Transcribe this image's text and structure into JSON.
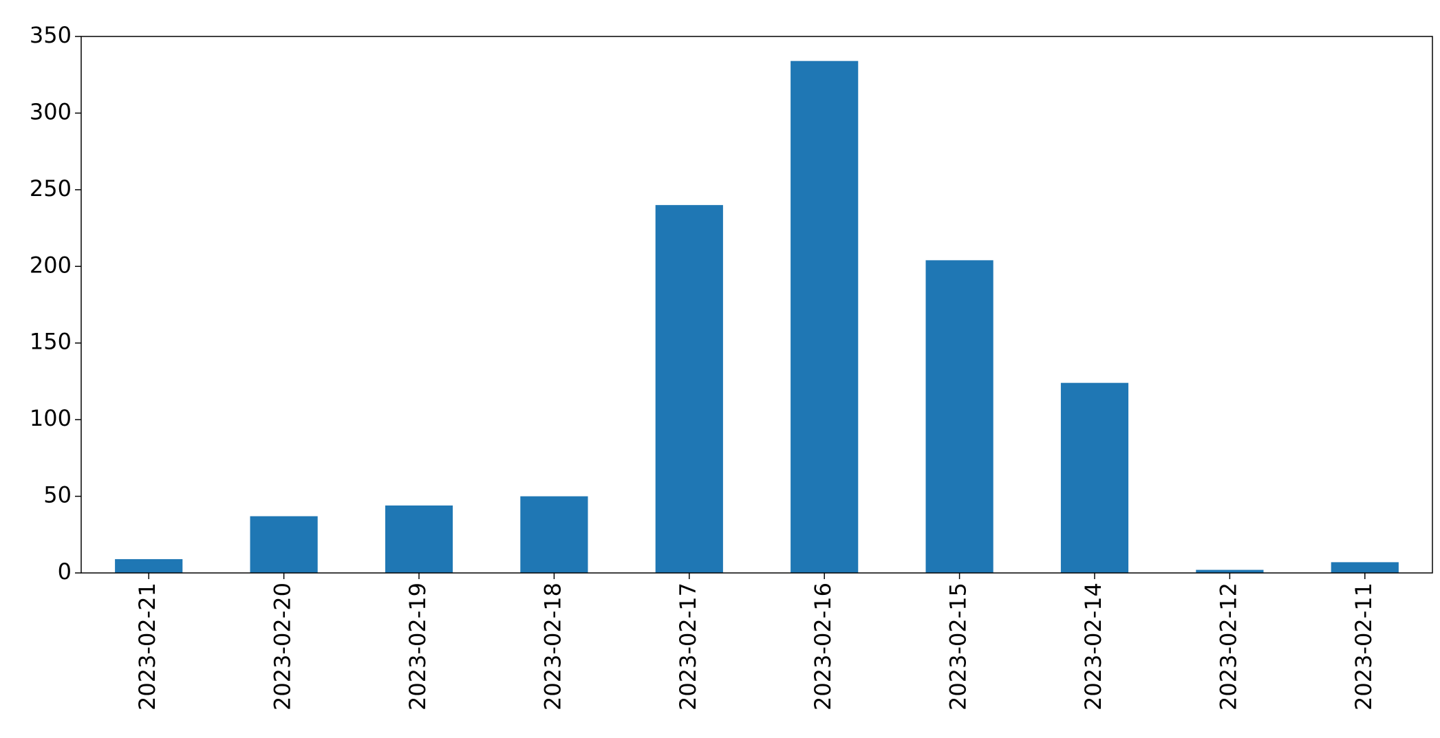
{
  "chart_data": {
    "type": "bar",
    "categories": [
      "2023-02-21",
      "2023-02-20",
      "2023-02-19",
      "2023-02-18",
      "2023-02-17",
      "2023-02-16",
      "2023-02-15",
      "2023-02-14",
      "2023-02-12",
      "2023-02-11"
    ],
    "values": [
      9,
      37,
      44,
      50,
      240,
      334,
      204,
      124,
      2,
      7
    ],
    "color": "#1f77b4",
    "ylim": [
      0,
      350
    ],
    "yticks": [
      0,
      50,
      100,
      150,
      200,
      250,
      300,
      350
    ],
    "grid": false
  }
}
